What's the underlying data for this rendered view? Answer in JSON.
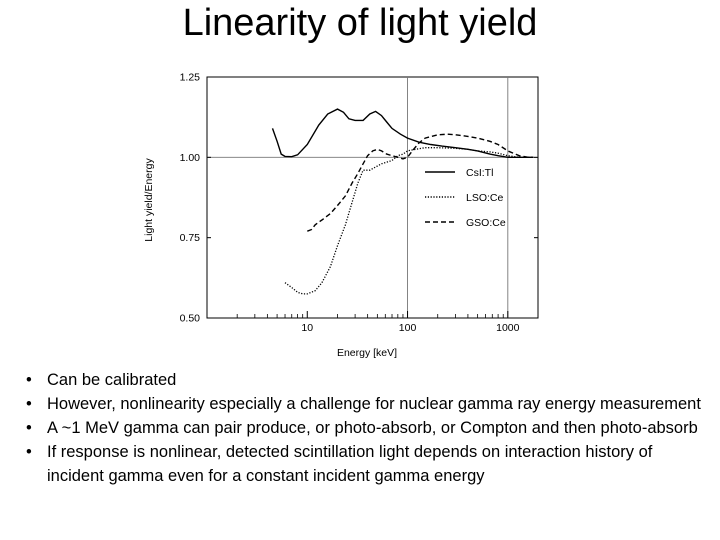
{
  "slide": {
    "title": "Linearity of light yield",
    "bullets": [
      "Can be calibrated",
      "However, nonlinearity especially a challenge for nuclear gamma ray energy measurement",
      "A ~1 MeV gamma can pair produce, or photo-absorb, or Compton and then photo-absorb",
      "If response is nonlinear, detected scintillation light depends on interaction history of incident gamma even for a constant incident gamma energy"
    ]
  },
  "chart_data": {
    "type": "line",
    "title": "",
    "xlabel": "Energy [keV]",
    "ylabel": "Light yield/Energy",
    "x_scale": "log",
    "xlim": [
      1,
      2000
    ],
    "ylim": [
      0.5,
      1.25
    ],
    "x_ticks": [
      {
        "value": 10,
        "label": "10"
      },
      {
        "value": 100,
        "label": "100"
      },
      {
        "value": 1000,
        "label": "1000"
      }
    ],
    "y_ticks": [
      {
        "value": 1.25,
        "label": "1.25"
      },
      {
        "value": 1.0,
        "label": "1.00"
      },
      {
        "value": 0.75,
        "label": "0.75"
      },
      {
        "value": 0.5,
        "label": "0.50"
      }
    ],
    "reference_lines": [
      {
        "axis": "y",
        "value": 1.0
      },
      {
        "axis": "x",
        "value": 100
      },
      {
        "axis": "x",
        "value": 1000
      }
    ],
    "legend_position": "right-center",
    "series": [
      {
        "name": "CsI:Tl",
        "style": "solid",
        "x": [
          4.5,
          5,
          5.5,
          6,
          7,
          8,
          10,
          13,
          16,
          20,
          23,
          26,
          30,
          36,
          42,
          48,
          55,
          62,
          70,
          85,
          100,
          130,
          170,
          220,
          300,
          400,
          500,
          662,
          800,
          1000,
          1300,
          1600,
          1800
        ],
        "y": [
          1.09,
          1.05,
          1.01,
          1.003,
          1.002,
          1.008,
          1.04,
          1.1,
          1.135,
          1.15,
          1.14,
          1.12,
          1.115,
          1.115,
          1.135,
          1.143,
          1.13,
          1.11,
          1.09,
          1.072,
          1.06,
          1.047,
          1.04,
          1.035,
          1.03,
          1.025,
          1.02,
          1.01,
          1.005,
          1.0,
          1.0,
          1.0,
          1.0
        ]
      },
      {
        "name": "LSO:Ce",
        "style": "dotted",
        "x": [
          6,
          7,
          8,
          9,
          10,
          12,
          14,
          17,
          20,
          24,
          28,
          32,
          36,
          42,
          48,
          55,
          62,
          70,
          80,
          90,
          100,
          120,
          150,
          200,
          300,
          400,
          500,
          662,
          800,
          1000,
          1300,
          1600,
          1800
        ],
        "y": [
          0.61,
          0.595,
          0.58,
          0.575,
          0.575,
          0.585,
          0.61,
          0.66,
          0.725,
          0.79,
          0.86,
          0.92,
          0.96,
          0.96,
          0.97,
          0.98,
          0.985,
          0.99,
          1.005,
          1.01,
          1.02,
          1.025,
          1.03,
          1.03,
          1.028,
          1.025,
          1.02,
          1.017,
          1.013,
          1.005,
          1.0,
          1.0,
          1.0
        ]
      },
      {
        "name": "GSO:Ce",
        "style": "dashed",
        "x": [
          10,
          11,
          12,
          14,
          17,
          20,
          24,
          28,
          32,
          36,
          40,
          45,
          50,
          55,
          62,
          70,
          80,
          90,
          100,
          115,
          130,
          150,
          200,
          250,
          300,
          400,
          500,
          662,
          800,
          1000,
          1300,
          1600,
          1800
        ],
        "y": [
          0.77,
          0.775,
          0.79,
          0.805,
          0.825,
          0.85,
          0.88,
          0.92,
          0.95,
          0.98,
          1.005,
          1.02,
          1.025,
          1.02,
          1.01,
          1.005,
          1.0,
          0.995,
          1.0,
          1.025,
          1.045,
          1.06,
          1.07,
          1.072,
          1.07,
          1.065,
          1.06,
          1.05,
          1.04,
          1.02,
          1.005,
          1.0,
          1.0
        ]
      }
    ]
  }
}
